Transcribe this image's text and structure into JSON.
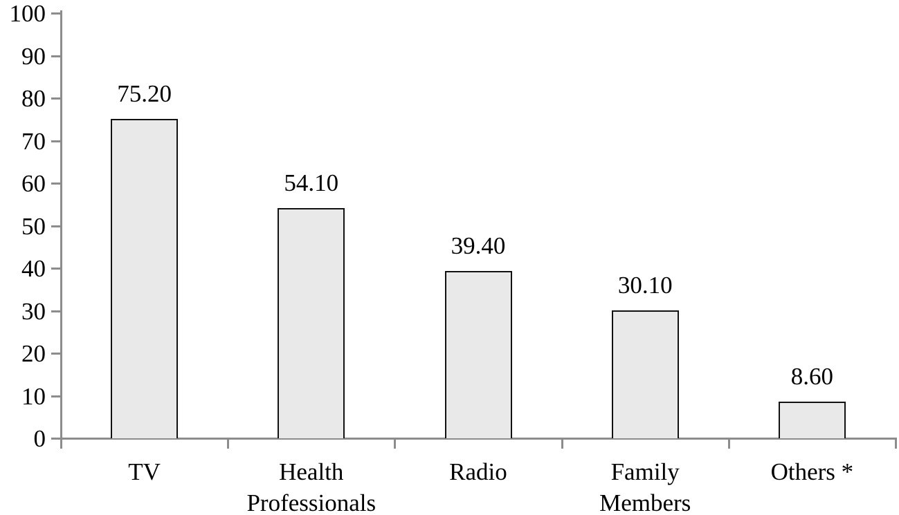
{
  "chart_data": {
    "type": "bar",
    "title": "",
    "xlabel": "",
    "ylabel": "",
    "categories": [
      "TV",
      "Health\nProfessionals",
      "Radio",
      "Family\nMembers",
      "Others *"
    ],
    "category_names": [
      "tv",
      "health-professionals",
      "radio",
      "family-members",
      "others"
    ],
    "values": [
      75.2,
      54.1,
      39.4,
      30.1,
      8.6
    ],
    "value_labels": [
      "75.20",
      "54.10",
      "39.40",
      "30.10",
      "8.60"
    ],
    "ylim": [
      0,
      100
    ],
    "ytick_interval": 10,
    "ytick_labels": [
      "0",
      "10",
      "20",
      "30",
      "40",
      "50",
      "60",
      "70",
      "80",
      "90",
      "100"
    ],
    "grid": false,
    "legend": false,
    "colors": {
      "bar_fill": "#e9e9e9",
      "bar_border": "#111111",
      "axis": "#8c8c8c",
      "text": "#000000",
      "background": "#ffffff"
    }
  }
}
